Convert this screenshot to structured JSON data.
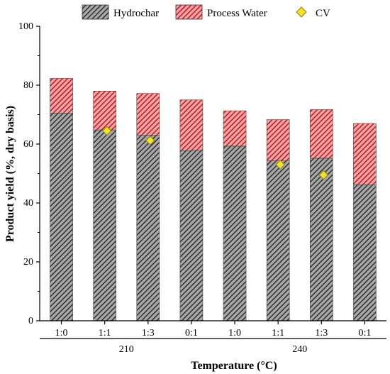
{
  "chart_data": {
    "type": "bar",
    "stacked": true,
    "categories": [
      "1:0",
      "1:1",
      "1:3",
      "0:1",
      "1:0",
      "1:1",
      "1:3",
      "0:1"
    ],
    "groups": [
      {
        "label": "210",
        "categories": [
          "1:0",
          "1:1",
          "1:3",
          "0:1"
        ]
      },
      {
        "label": "240",
        "categories": [
          "1:0",
          "1:1",
          "1:3",
          "0:1"
        ]
      }
    ],
    "series": [
      {
        "name": "Hydrochar",
        "type": "bar",
        "color": "#4a4a4a",
        "pattern": "diagonal-hatch",
        "values": [
          70.5,
          64.8,
          63.0,
          57.8,
          59.3,
          54.3,
          55.2,
          46.2
        ]
      },
      {
        "name": "Process Water",
        "type": "bar",
        "color": "#d9282e",
        "pattern": "diagonal-hatch",
        "values": [
          11.8,
          13.2,
          14.2,
          17.2,
          12.0,
          14.0,
          16.5,
          20.8
        ]
      },
      {
        "name": "CV",
        "type": "scatter",
        "marker": "diamond",
        "color": "#f2e32a",
        "values": [
          null,
          64.5,
          61.2,
          null,
          null,
          53.0,
          49.5,
          null
        ]
      }
    ],
    "xlabel": "Temperature (°C)",
    "ylabel": "Product yield (%, dry basis)",
    "ylim": [
      0,
      100
    ],
    "yticks": [
      0,
      20,
      40,
      60,
      80,
      100
    ],
    "legend": "top",
    "grid": false
  }
}
